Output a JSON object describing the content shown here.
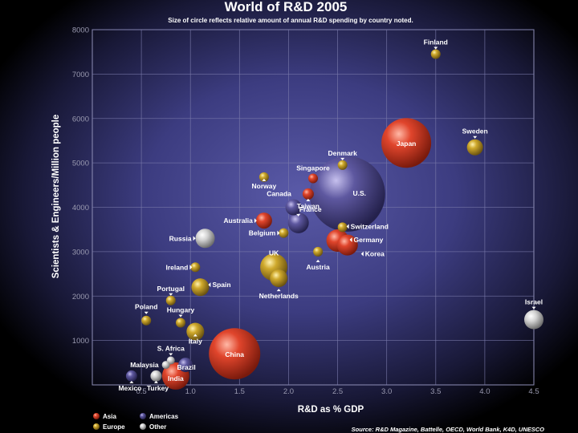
{
  "chart_data": {
    "type": "scatter",
    "title": "World of R&D 2005",
    "subtitle": "Size of circle reflects relative amount of annual R&D spending by country noted.",
    "xlabel": "R&D as % GDP",
    "ylabel": "Scientists & Engineers/Million people",
    "xlim": [
      0,
      4.5
    ],
    "ylim": [
      0,
      8000
    ],
    "xticks": [
      "0.5",
      "1.0",
      "1.5",
      "2.0",
      "2.5",
      "3.0",
      "3.5",
      "4.0",
      "4.5"
    ],
    "yticks": [
      "1000",
      "2000",
      "3000",
      "4000",
      "5000",
      "6000",
      "7000",
      "8000"
    ],
    "grid": true,
    "legend_position": "bottom-left",
    "colors": {
      "Asia": "#d8402a",
      "Americas": "#5a5490",
      "Europe": "#c9a52a",
      "Other": "#cfcfcf"
    },
    "legend": [
      {
        "name": "Asia",
        "color_key": "Asia"
      },
      {
        "name": "Americas",
        "color_key": "Americas"
      },
      {
        "name": "Europe",
        "color_key": "Europe"
      },
      {
        "name": "Other",
        "color_key": "Other"
      }
    ],
    "points": [
      {
        "label": "Finland",
        "region": "Europe",
        "x": 3.5,
        "y": 7450,
        "size": 6
      },
      {
        "label": "Sweden",
        "region": "Europe",
        "x": 3.9,
        "y": 5350,
        "size": 10
      },
      {
        "label": "Japan",
        "region": "Asia",
        "x": 3.2,
        "y": 5450,
        "size": 31
      },
      {
        "label": "Denmark",
        "region": "Europe",
        "x": 2.55,
        "y": 4950,
        "size": 6
      },
      {
        "label": "Singapore",
        "region": "Asia",
        "x": 2.25,
        "y": 4650,
        "size": 6
      },
      {
        "label": "Norway",
        "region": "Europe",
        "x": 1.75,
        "y": 4680,
        "size": 6
      },
      {
        "label": "Taiwan",
        "region": "Asia",
        "x": 2.2,
        "y": 4300,
        "size": 7
      },
      {
        "label": "U.S.",
        "region": "Americas",
        "x": 2.6,
        "y": 4300,
        "size": 47
      },
      {
        "label": "Canada",
        "region": "Americas",
        "x": 2.05,
        "y": 4000,
        "size": 10
      },
      {
        "label": "Australia",
        "region": "Asia",
        "x": 1.75,
        "y": 3700,
        "size": 10
      },
      {
        "label": "France",
        "region": "Americas",
        "x": 2.1,
        "y": 3650,
        "size": 13
      },
      {
        "label": "Belgium",
        "region": "Europe",
        "x": 1.95,
        "y": 3420,
        "size": 6
      },
      {
        "label": "Russia",
        "region": "Other",
        "x": 1.15,
        "y": 3300,
        "size": 12
      },
      {
        "label": "Switzerland",
        "region": "Europe",
        "x": 2.55,
        "y": 3550,
        "size": 6
      },
      {
        "label": "Germany",
        "region": "Asia",
        "x": 2.5,
        "y": 3250,
        "size": 14
      },
      {
        "label": "Korea",
        "region": "Asia",
        "x": 2.6,
        "y": 3150,
        "size": 13
      },
      {
        "label": "Austria",
        "region": "Europe",
        "x": 2.3,
        "y": 3000,
        "size": 6
      },
      {
        "label": "UK",
        "region": "Europe",
        "x": 1.85,
        "y": 2650,
        "size": 17
      },
      {
        "label": "Netherlands",
        "region": "Europe",
        "x": 1.9,
        "y": 2400,
        "size": 11
      },
      {
        "label": "Ireland",
        "region": "Europe",
        "x": 1.05,
        "y": 2650,
        "size": 6
      },
      {
        "label": "Spain",
        "region": "Europe",
        "x": 1.1,
        "y": 2200,
        "size": 11
      },
      {
        "label": "Portugal",
        "region": "Europe",
        "x": 0.8,
        "y": 1900,
        "size": 6
      },
      {
        "label": "Poland",
        "region": "Europe",
        "x": 0.55,
        "y": 1450,
        "size": 6
      },
      {
        "label": "Hungary",
        "region": "Europe",
        "x": 0.9,
        "y": 1400,
        "size": 6
      },
      {
        "label": "Italy",
        "region": "Europe",
        "x": 1.05,
        "y": 1200,
        "size": 11
      },
      {
        "label": "Israel",
        "region": "Other",
        "x": 4.5,
        "y": 1470,
        "size": 12
      },
      {
        "label": "China",
        "region": "Asia",
        "x": 1.45,
        "y": 700,
        "size": 32
      },
      {
        "label": "S. Africa",
        "region": "Other",
        "x": 0.8,
        "y": 550,
        "size": 5
      },
      {
        "label": "Malaysia",
        "region": "Other",
        "x": 0.75,
        "y": 450,
        "size": 5
      },
      {
        "label": "Brazil",
        "region": "Americas",
        "x": 0.95,
        "y": 450,
        "size": 9
      },
      {
        "label": "India",
        "region": "Asia",
        "x": 0.85,
        "y": 200,
        "size": 17
      },
      {
        "label": "Mexico",
        "region": "Americas",
        "x": 0.4,
        "y": 200,
        "size": 7
      },
      {
        "label": "Turkey",
        "region": "Other",
        "x": 0.65,
        "y": 200,
        "size": 7
      }
    ]
  },
  "source": "Source: R&D Magazine, Battelle, OECD, World Bank, K4D, UNESCO"
}
